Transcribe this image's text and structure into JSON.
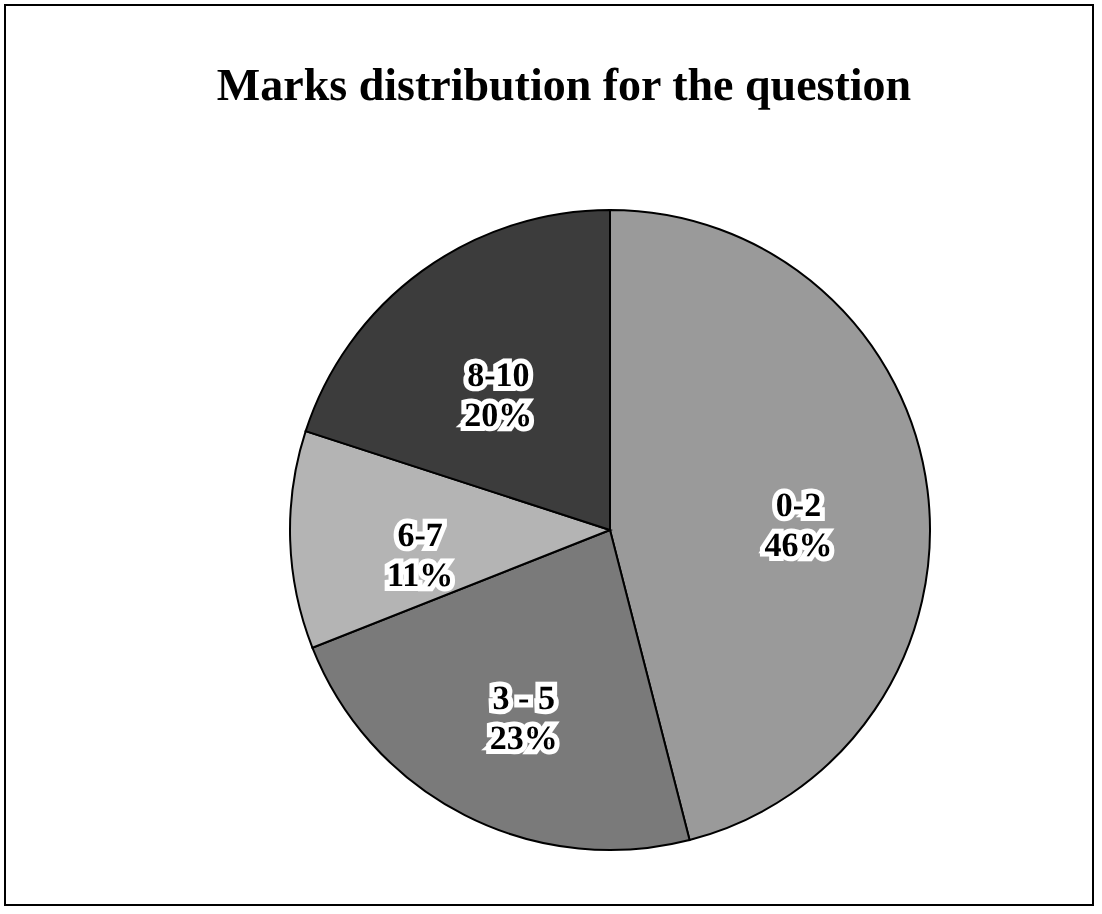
{
  "chart_data": {
    "type": "pie",
    "title": "Marks distribution for the question",
    "categories": [
      "0-2",
      "3 - 5",
      "6-7",
      "8-10"
    ],
    "values": [
      46,
      23,
      11,
      20
    ],
    "colors": [
      "#9a9a9a",
      "#7a7a7a",
      "#b4b4b4",
      "#3c3c3c"
    ],
    "value_labels": [
      "46%",
      "23%",
      "11%",
      "20%"
    ]
  }
}
